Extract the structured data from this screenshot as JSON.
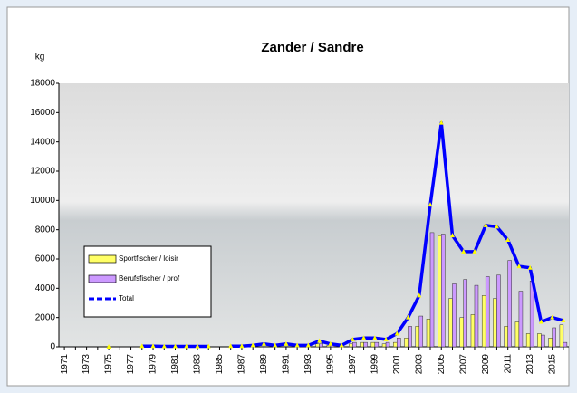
{
  "chart_data": {
    "type": "bar-line",
    "title": "Zander / Sandre",
    "y_label": "kg",
    "categories": [
      "1971",
      null,
      "1973",
      null,
      "1975",
      null,
      "1977",
      null,
      "1979",
      null,
      "1981",
      null,
      "1983",
      null,
      "1985",
      null,
      "1987",
      null,
      "1989",
      null,
      "1991",
      null,
      "1993",
      null,
      "1995",
      null,
      "1997",
      null,
      "1999",
      null,
      "2001",
      null,
      "2003",
      null,
      "2005",
      null,
      "2007",
      null,
      "2009",
      null,
      "2011",
      null,
      "2013",
      null,
      "2015",
      null
    ],
    "series": [
      {
        "name": "Sportfischer / loisir",
        "type": "bar",
        "color": "#ffff66",
        "values": [
          null,
          null,
          null,
          null,
          null,
          null,
          null,
          null,
          null,
          null,
          null,
          null,
          null,
          null,
          null,
          null,
          null,
          null,
          null,
          null,
          null,
          null,
          null,
          200,
          100,
          null,
          200,
          300,
          300,
          200,
          300,
          600,
          1400,
          1900,
          7600,
          3300,
          2000,
          2200,
          3500,
          3300,
          1400,
          1700,
          900,
          900,
          600,
          1500
        ]
      },
      {
        "name": "Berufsfischer / prof",
        "type": "bar",
        "color": "#cc99ff",
        "values": [
          null,
          null,
          null,
          null,
          null,
          null,
          null,
          null,
          null,
          null,
          null,
          null,
          null,
          null,
          null,
          null,
          null,
          null,
          null,
          null,
          null,
          null,
          null,
          200,
          100,
          null,
          300,
          300,
          300,
          300,
          600,
          1400,
          2100,
          7800,
          7700,
          4300,
          4600,
          4200,
          4800,
          4900,
          5900,
          3800,
          4500,
          800,
          1300,
          300
        ]
      },
      {
        "name": "Total",
        "type": "line",
        "color": "#0000ff",
        "marker_color": "#ffff00",
        "values": [
          null,
          null,
          null,
          null,
          0,
          null,
          null,
          50,
          50,
          30,
          30,
          30,
          30,
          30,
          null,
          50,
          50,
          100,
          200,
          100,
          200,
          100,
          100,
          400,
          200,
          100,
          500,
          600,
          600,
          500,
          900,
          2000,
          3500,
          9700,
          15300,
          7600,
          6500,
          6500,
          8300,
          8200,
          7300,
          5500,
          5400,
          1700,
          2000,
          1800
        ]
      }
    ],
    "ylim": [
      0,
      18000
    ],
    "yticks": [
      0,
      2000,
      4000,
      6000,
      8000,
      10000,
      12000,
      14000,
      16000,
      18000
    ],
    "legend": "left"
  }
}
